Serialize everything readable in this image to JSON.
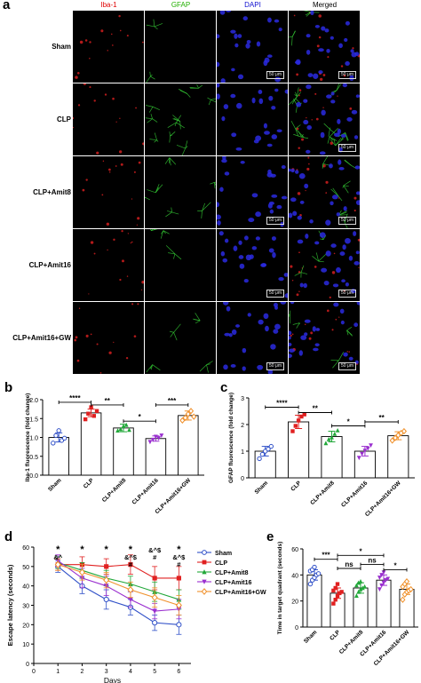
{
  "panel_a": {
    "letter": "a",
    "columns": [
      "Iba-1",
      "GFAP",
      "DAPI",
      "Merged"
    ],
    "column_colors": [
      "#e00000",
      "#22b000",
      "#1010d0",
      "#000000"
    ],
    "rows": [
      "Sham",
      "CLP",
      "CLP+Amit8",
      "CLP+Amit16",
      "CLP+Amit16+GW"
    ],
    "scale_bar": "50 μm"
  },
  "chart_data": [
    {
      "panel": "b",
      "type": "bar",
      "ylabel": "Iba-1 fluorescence (fold change)",
      "categories": [
        "Sham",
        "CLP",
        "CLP+Amit8",
        "CLP+Amit16",
        "CLP+Amit16+GW"
      ],
      "values": [
        1.0,
        1.65,
        1.25,
        0.97,
        1.58
      ],
      "errors": [
        0.12,
        0.1,
        0.1,
        0.07,
        0.12
      ],
      "points": [
        [
          0.85,
          1.05,
          1.18,
          0.92,
          0.98
        ],
        [
          1.48,
          1.63,
          1.8,
          1.57,
          1.7
        ],
        [
          1.18,
          1.22,
          1.3,
          1.33,
          1.2
        ],
        [
          0.88,
          0.94,
          1.02,
          0.98,
          1.05
        ],
        [
          1.45,
          1.52,
          1.62,
          1.7,
          1.55
        ]
      ],
      "colors": [
        "#3050c8",
        "#e02020",
        "#22a83a",
        "#9a2fcf",
        "#f0902a"
      ],
      "ylim": [
        0,
        2
      ],
      "yticks": [
        0,
        0.5,
        1.0,
        1.5,
        2.0
      ],
      "ytick_labels": [
        "0.0",
        "0.5",
        "1.0",
        "1.5",
        "2.0"
      ],
      "significance": [
        {
          "from": 0,
          "to": 1,
          "label": "****",
          "y": 1.93
        },
        {
          "from": 1,
          "to": 2,
          "label": "**",
          "y": 1.86
        },
        {
          "from": 2,
          "to": 3,
          "label": "*",
          "y": 1.43
        },
        {
          "from": 3,
          "to": 4,
          "label": "***",
          "y": 1.86
        }
      ]
    },
    {
      "panel": "c",
      "type": "bar",
      "ylabel": "GFAP fluorescence (fold change)",
      "categories": [
        "Sham",
        "CLP",
        "CLP+Amit8",
        "CLP+Amit16",
        "CLP+Amit16+GW"
      ],
      "values": [
        1.0,
        2.1,
        1.55,
        1.0,
        1.58
      ],
      "errors": [
        0.18,
        0.25,
        0.2,
        0.18,
        0.15
      ],
      "points": [
        [
          0.72,
          0.88,
          1.0,
          1.08,
          1.18
        ],
        [
          1.75,
          1.95,
          2.15,
          2.3,
          2.38
        ],
        [
          1.3,
          1.45,
          1.52,
          1.65,
          1.78
        ],
        [
          0.75,
          0.9,
          1.02,
          1.1,
          1.22
        ],
        [
          1.4,
          1.5,
          1.6,
          1.68,
          1.75
        ]
      ],
      "colors": [
        "#3050c8",
        "#e02020",
        "#22a83a",
        "#9a2fcf",
        "#f0902a"
      ],
      "ylim": [
        0,
        3
      ],
      "yticks": [
        0,
        1,
        2,
        3
      ],
      "ytick_labels": [
        "0",
        "1",
        "2",
        "3"
      ],
      "significance": [
        {
          "from": 0,
          "to": 1,
          "label": "****",
          "y": 2.65
        },
        {
          "from": 1,
          "to": 2,
          "label": "**",
          "y": 2.45
        },
        {
          "from": 2,
          "to": 3,
          "label": "*",
          "y": 1.95
        },
        {
          "from": 3,
          "to": 4,
          "label": "**",
          "y": 2.1
        }
      ]
    },
    {
      "panel": "d",
      "type": "line",
      "ylabel": "Escape latency (seconds)",
      "xlabel": "Days",
      "x": [
        1,
        2,
        3,
        4,
        5,
        6
      ],
      "xlim": [
        0,
        6.5
      ],
      "xticks": [
        0,
        1,
        2,
        3,
        4,
        5,
        6
      ],
      "ylim": [
        0,
        60
      ],
      "yticks": [
        0,
        10,
        20,
        30,
        40,
        50,
        60
      ],
      "series": [
        {
          "name": "Sham",
          "color": "#3050c8",
          "marker": "circle-open",
          "values": [
            50,
            40,
            33,
            29,
            21,
            20
          ],
          "errors": [
            3,
            4,
            5,
            4,
            4,
            5
          ]
        },
        {
          "name": "CLP",
          "color": "#e02020",
          "marker": "square",
          "values": [
            51,
            51,
            50,
            51,
            44,
            44
          ],
          "errors": [
            3,
            4,
            4,
            5,
            6,
            6
          ]
        },
        {
          "name": "CLP+Amit8",
          "color": "#22a83a",
          "marker": "triangle-up",
          "values": [
            52,
            48,
            44,
            41,
            37,
            33
          ],
          "errors": [
            3,
            4,
            4,
            4,
            5,
            5
          ]
        },
        {
          "name": "CLP+Amit16",
          "color": "#9a2fcf",
          "marker": "triangle-down",
          "values": [
            53,
            44,
            40,
            33,
            27,
            28
          ],
          "errors": [
            3,
            5,
            5,
            4,
            4,
            5
          ]
        },
        {
          "name": "CLP+Amit16+GW",
          "color": "#f0902a",
          "marker": "diamond-open",
          "values": [
            51,
            47,
            43,
            38,
            34,
            30
          ],
          "errors": [
            3,
            4,
            4,
            4,
            5,
            5
          ]
        }
      ],
      "annotations": [
        {
          "x": 1,
          "lines": [
            "*",
            "&^"
          ]
        },
        {
          "x": 2,
          "lines": [
            "*"
          ]
        },
        {
          "x": 3,
          "lines": [
            "*"
          ]
        },
        {
          "x": 4,
          "lines": [
            "*",
            "&^$",
            "#"
          ]
        },
        {
          "x": 5,
          "lines": [
            "&^$",
            "#"
          ]
        },
        {
          "x": 6,
          "lines": [
            "*",
            "&^$",
            "#"
          ]
        }
      ]
    },
    {
      "panel": "e",
      "type": "bar",
      "ylabel": "Time in target quadrant (seconds)",
      "categories": [
        "Sham",
        "CLP",
        "CLP+Amit8",
        "CLP+Amit16",
        "CLP+Amit16+GW"
      ],
      "values": [
        40,
        26,
        30,
        36,
        29
      ],
      "errors": [
        4,
        4,
        4,
        4,
        4
      ],
      "points": [
        [
          33,
          36,
          38,
          40,
          41,
          43,
          44,
          46
        ],
        [
          18,
          21,
          24,
          26,
          27,
          28,
          30,
          33
        ],
        [
          24,
          27,
          29,
          30,
          31,
          32,
          34,
          35
        ],
        [
          29,
          32,
          34,
          36,
          37,
          38,
          40,
          42
        ],
        [
          21,
          25,
          27,
          28,
          29,
          31,
          33,
          35
        ]
      ],
      "colors": [
        "#3050c8",
        "#e02020",
        "#22a83a",
        "#9a2fcf",
        "#f0902a"
      ],
      "ylim": [
        0,
        60
      ],
      "yticks": [
        0,
        20,
        40,
        60
      ],
      "significance": [
        {
          "from": 0,
          "to": 1,
          "label": "***",
          "y": 52
        },
        {
          "from": 1,
          "to": 3,
          "label": "*",
          "y": 55
        },
        {
          "from": 1,
          "to": 2,
          "label": "ns",
          "y": 45
        },
        {
          "from": 2,
          "to": 3,
          "label": "ns",
          "y": 48
        },
        {
          "from": 3,
          "to": 4,
          "label": "*",
          "y": 44
        }
      ]
    }
  ]
}
